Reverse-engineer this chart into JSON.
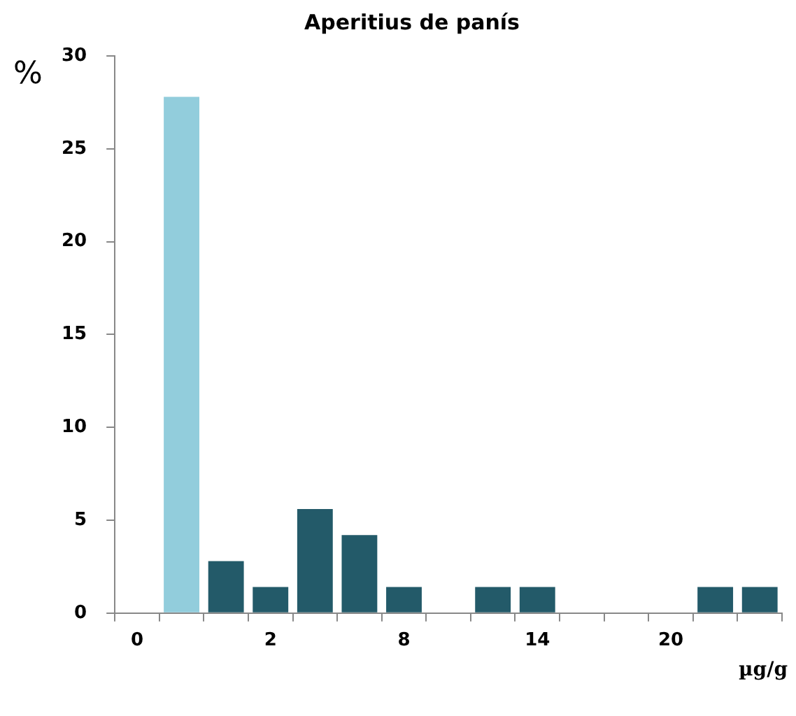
{
  "chart_data": {
    "type": "bar",
    "title": "Aperitius de panís",
    "xlabel": "µg/g",
    "ylabel": "%",
    "categories": [
      "0",
      null,
      null,
      "2",
      null,
      null,
      "8",
      null,
      null,
      "14",
      null,
      null,
      "20",
      null,
      null
    ],
    "values": [
      0,
      27.8,
      2.8,
      1.4,
      5.6,
      4.2,
      1.4,
      0,
      1.4,
      1.4,
      0,
      0,
      0,
      1.4,
      1.4
    ],
    "colors": [
      "#235a69",
      "#92cddc",
      "#235a69",
      "#235a69",
      "#235a69",
      "#235a69",
      "#235a69",
      "#235a69",
      "#235a69",
      "#235a69",
      "#235a69",
      "#235a69",
      "#235a69",
      "#235a69",
      "#235a69"
    ],
    "ylim": [
      0,
      30
    ],
    "yticks": [
      0,
      5,
      10,
      15,
      20,
      25,
      30
    ],
    "grid": false,
    "legend": false
  }
}
